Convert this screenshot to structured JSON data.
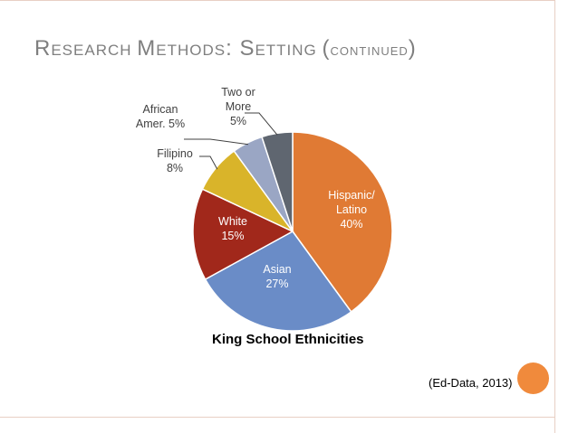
{
  "slide": {
    "title_parts": [
      {
        "text": "R",
        "cls": ""
      },
      {
        "text": "ESEARCH ",
        "cls": "sc"
      },
      {
        "text": "M",
        "cls": ""
      },
      {
        "text": "ETHODS",
        "cls": "sc"
      },
      {
        "text": ": S",
        "cls": ""
      },
      {
        "text": "ETTING ",
        "cls": "sc"
      },
      {
        "text": "(",
        "cls": ""
      },
      {
        "text": "CONTINUED",
        "cls": "sm"
      },
      {
        "text": ")",
        "cls": ""
      }
    ],
    "source": "(Ed-Data, 2013)"
  },
  "colors": {
    "rail": "#e8cfc4",
    "accent_dot": "#f08a3c"
  },
  "chart_data": {
    "type": "pie",
    "title": "King School Ethnicities",
    "slices": [
      {
        "label": "Hispanic/ Latino",
        "value": 40,
        "label_lines": [
          "Hispanic/",
          "Latino",
          "40%"
        ],
        "color": "#e07a34"
      },
      {
        "label": "Asian",
        "value": 27,
        "label_lines": [
          "Asian",
          "27%"
        ],
        "color": "#6a8cc7"
      },
      {
        "label": "White",
        "value": 15,
        "label_lines": [
          "White",
          "15%"
        ],
        "color": "#a1281b"
      },
      {
        "label": "Filipino",
        "value": 8,
        "label_lines": [
          "Filipino",
          "8%"
        ],
        "color": "#d9b42a"
      },
      {
        "label": "African Amer.",
        "value": 5,
        "label_lines": [
          "African",
          "Amer. 5%"
        ],
        "color": "#9aa6c4"
      },
      {
        "label": "Two or More",
        "value": 5,
        "label_lines": [
          "Two or",
          "More",
          "5%"
        ],
        "color": "#5f6670"
      }
    ]
  }
}
